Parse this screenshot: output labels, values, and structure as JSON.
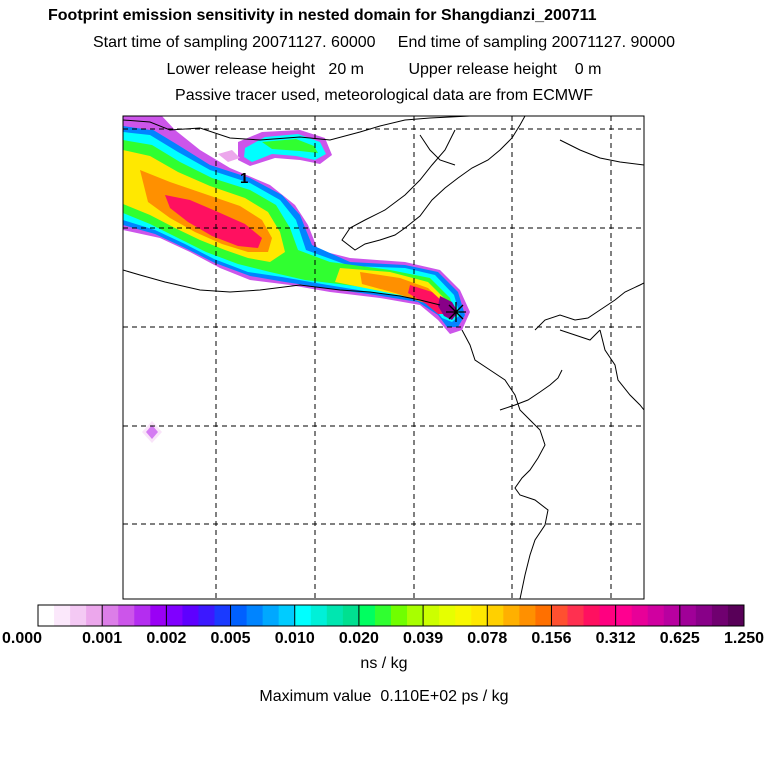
{
  "header": {
    "title": "Footprint emission sensitivity in nested domain for Shangdianzi_200711",
    "sampling_line": "Start time of sampling 20071127. 60000     End time of sampling 20071127. 90000",
    "release_line": "Lower release height   20 m          Upper release height    0 m",
    "tracer_line": "Passive tracer used, meteorological data are from ECMWF"
  },
  "map": {
    "contour_label": "1",
    "station_marker": "release-point-cross-icon"
  },
  "colorbar": {
    "tick_labels": [
      "0.000",
      "0.001",
      "0.002",
      "0.005",
      "0.010",
      "0.020",
      "0.039",
      "0.078",
      "0.156",
      "0.312",
      "0.625",
      "1.250"
    ],
    "colors": [
      [
        "#ffffff",
        "#fbe8fb",
        "#f4c9f4",
        "#eca7ec"
      ],
      [
        "#dc7ee8",
        "#cc55ea",
        "#b42df0",
        "#9a00f5"
      ],
      [
        "#8000ff",
        "#5e00ff",
        "#3c18ff",
        "#1a3aff"
      ],
      [
        "#0060ff",
        "#0084ff",
        "#00a8ff",
        "#00ccff"
      ],
      [
        "#00ffff",
        "#00f0d8",
        "#00e6b0",
        "#00e090"
      ],
      [
        "#00ff60",
        "#30ff30",
        "#70ff00",
        "#a8ff00"
      ],
      [
        "#ccff00",
        "#e6ff00",
        "#f8f800",
        "#ffe800"
      ],
      [
        "#ffd000",
        "#ffb000",
        "#ff9000",
        "#ff7000"
      ],
      [
        "#ff5030",
        "#ff3050",
        "#ff1060",
        "#ff0080"
      ],
      [
        "#ff0090",
        "#e80098",
        "#d000a0",
        "#b800a0"
      ],
      [
        "#a00098",
        "#880088",
        "#700070",
        "#580058"
      ]
    ],
    "units": "ns / kg",
    "max_value_text": "Maximum value  0.110E+02 ps / kg"
  }
}
